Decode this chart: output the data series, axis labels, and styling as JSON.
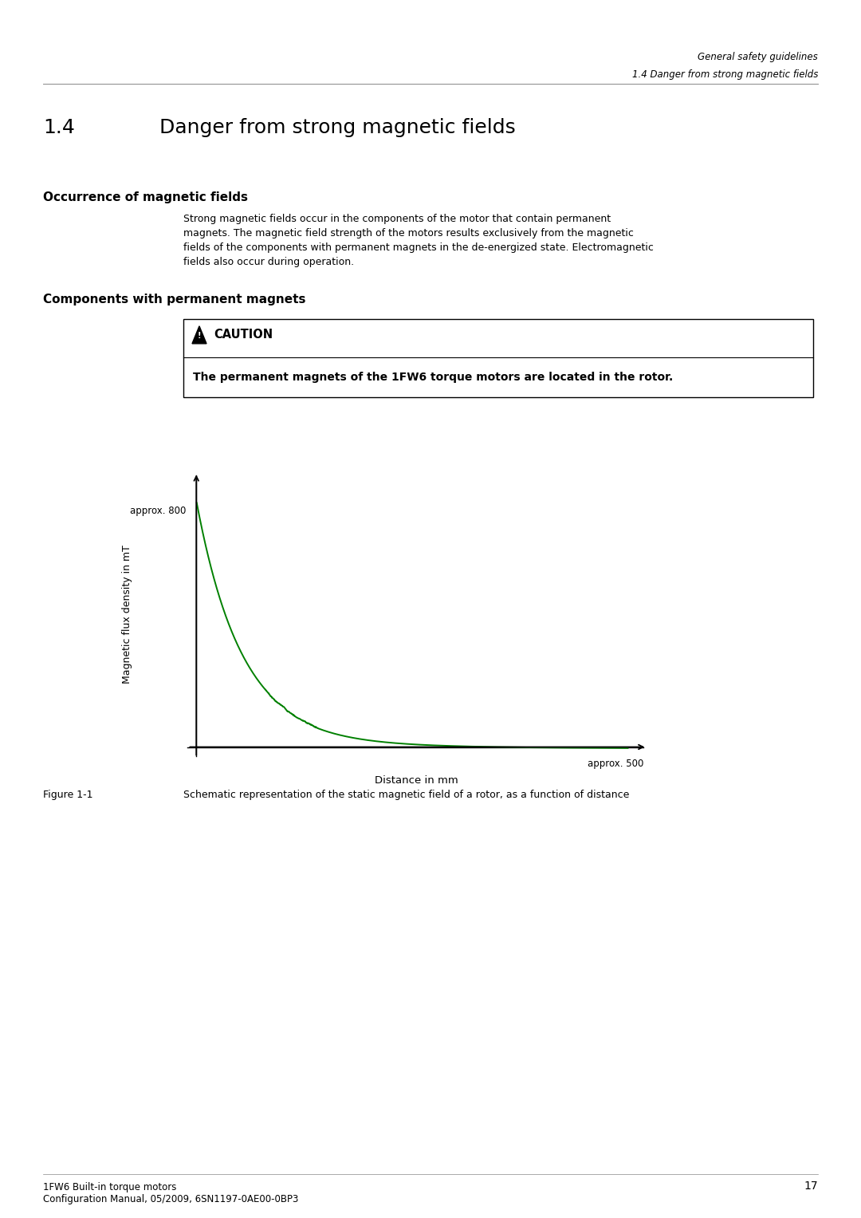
{
  "page_header_line1": "General safety guidelines",
  "page_header_line2": "1.4 Danger from strong magnetic fields",
  "section_number": "1.4",
  "section_title_text": "Danger from strong magnetic fields",
  "subsection1_title": "Occurrence of magnetic fields",
  "subsection1_body_lines": [
    "Strong magnetic fields occur in the components of the motor that contain permanent",
    "magnets. The magnetic field strength of the motors results exclusively from the magnetic",
    "fields of the components with permanent magnets in the de-energized state. Electromagnetic",
    "fields also occur during operation."
  ],
  "subsection2_title": "Components with permanent magnets",
  "caution_title": "CAUTION",
  "caution_body": "The permanent magnets of the 1FW6 torque motors are located in the rotor.",
  "ylabel": "Magnetic flux density in mT",
  "xlabel": "Distance in mm",
  "y_annot": "approx. 800",
  "x_annot": "approx. 500",
  "figure_label": "Figure 1-1",
  "figure_caption": "Schematic representation of the static magnetic field of a rotor, as a function of distance",
  "footer_line1": "1FW6 Built-in torque motors",
  "footer_line2": "Configuration Manual, 05/2009, 6SN1197-0AE00-0BP3",
  "footer_page": "17",
  "curve_color": "#008000",
  "background_color": "#ffffff",
  "header_color": "#444444",
  "text_color": "#000000"
}
